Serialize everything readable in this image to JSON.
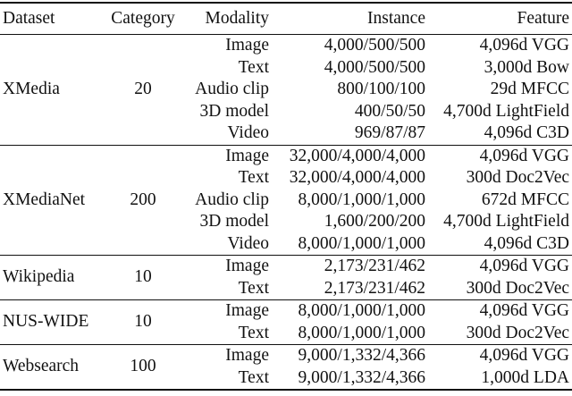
{
  "table": {
    "headers": {
      "dataset": "Dataset",
      "category": "Category",
      "modality": "Modality",
      "instance": "Instance",
      "feature": "Feature"
    },
    "groups": [
      {
        "dataset": "XMedia",
        "category": "20",
        "rows": [
          {
            "modality": "Image",
            "instance": "4,000/500/500",
            "feature": "4,096d VGG"
          },
          {
            "modality": "Text",
            "instance": "4,000/500/500",
            "feature": "3,000d Bow"
          },
          {
            "modality": "Audio clip",
            "instance": "800/100/100",
            "feature": "29d MFCC"
          },
          {
            "modality": "3D model",
            "instance": "400/50/50",
            "feature": "4,700d LightField"
          },
          {
            "modality": "Video",
            "instance": "969/87/87",
            "feature": "4,096d C3D"
          }
        ]
      },
      {
        "dataset": "XMediaNet",
        "category": "200",
        "rows": [
          {
            "modality": "Image",
            "instance": "32,000/4,000/4,000",
            "feature": "4,096d VGG"
          },
          {
            "modality": "Text",
            "instance": "32,000/4,000/4,000",
            "feature": "300d Doc2Vec"
          },
          {
            "modality": "Audio clip",
            "instance": "8,000/1,000/1,000",
            "feature": "672d MFCC"
          },
          {
            "modality": "3D model",
            "instance": "1,600/200/200",
            "feature": "4,700d LightField"
          },
          {
            "modality": "Video",
            "instance": "8,000/1,000/1,000",
            "feature": "4,096d C3D"
          }
        ]
      },
      {
        "dataset": "Wikipedia",
        "category": "10",
        "rows": [
          {
            "modality": "Image",
            "instance": "2,173/231/462",
            "feature": "4,096d VGG"
          },
          {
            "modality": "Text",
            "instance": "2,173/231/462",
            "feature": "300d Doc2Vec"
          }
        ]
      },
      {
        "dataset": "NUS-WIDE",
        "category": "10",
        "rows": [
          {
            "modality": "Image",
            "instance": "8,000/1,000/1,000",
            "feature": "4,096d VGG"
          },
          {
            "modality": "Text",
            "instance": "8,000/1,000/1,000",
            "feature": "300d Doc2Vec"
          }
        ]
      },
      {
        "dataset": "Websearch",
        "category": "100",
        "rows": [
          {
            "modality": "Image",
            "instance": "9,000/1,332/4,366",
            "feature": "4,096d VGG"
          },
          {
            "modality": "Text",
            "instance": "9,000/1,332/4,366",
            "feature": "1,000d LDA"
          }
        ]
      }
    ]
  }
}
